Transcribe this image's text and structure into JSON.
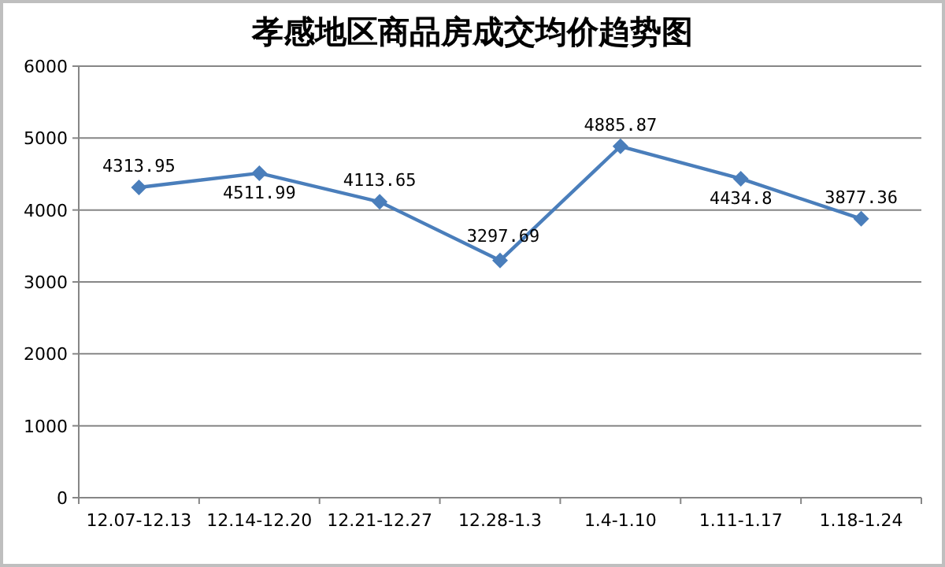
{
  "chart_data": {
    "type": "line",
    "title": "孝感地区商品房成交均价趋势图",
    "categories": [
      "12.07-12.13",
      "12.14-12.20",
      "12.21-12.27",
      "12.28-1.3",
      "1.4-1.10",
      "1.11-1.17",
      "1.18-1.24"
    ],
    "series": [
      {
        "color": "#4a7ebb",
        "values": [
          4313.95,
          4511.99,
          4113.65,
          3297.69,
          4885.87,
          4434.8,
          3877.36
        ]
      }
    ],
    "ylim": [
      0,
      6000
    ],
    "yticks": [
      0,
      1000,
      2000,
      3000,
      4000,
      5000,
      6000
    ],
    "grid": "y",
    "marker": "diamond",
    "line_style": "solid",
    "data_labels": true
  }
}
